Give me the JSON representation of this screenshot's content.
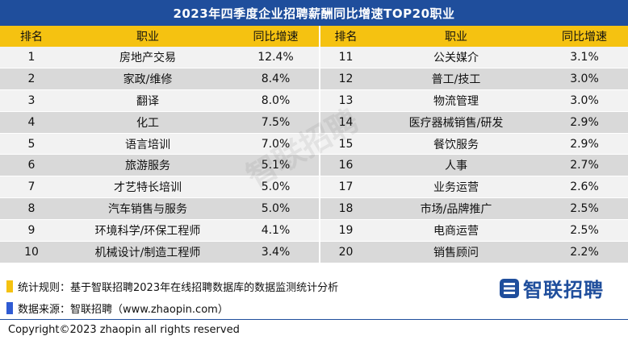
{
  "title": "2023年四季度企业招聘薪酬同比增速TOP20职业",
  "columns": [
    "排名",
    "职业",
    "同比增速",
    "排名",
    "职业",
    "同比增速"
  ],
  "rows": [
    {
      "r1": "1",
      "j1": "房地产交易",
      "v1": "12.4%",
      "r2": "11",
      "j2": "公关媒介",
      "v2": "3.1%"
    },
    {
      "r1": "2",
      "j1": "家政/维修",
      "v1": "8.4%",
      "r2": "12",
      "j2": "普工/技工",
      "v2": "3.0%"
    },
    {
      "r1": "3",
      "j1": "翻译",
      "v1": "8.0%",
      "r2": "13",
      "j2": "物流管理",
      "v2": "3.0%"
    },
    {
      "r1": "4",
      "j1": "化工",
      "v1": "7.5%",
      "r2": "14",
      "j2": "医疗器械销售/研发",
      "v2": "2.9%"
    },
    {
      "r1": "5",
      "j1": "语言培训",
      "v1": "7.0%",
      "r2": "15",
      "j2": "餐饮服务",
      "v2": "2.9%"
    },
    {
      "r1": "6",
      "j1": "旅游服务",
      "v1": "5.1%",
      "r2": "16",
      "j2": "人事",
      "v2": "2.7%"
    },
    {
      "r1": "7",
      "j1": "才艺特长培训",
      "v1": "5.0%",
      "r2": "17",
      "j2": "业务运营",
      "v2": "2.6%"
    },
    {
      "r1": "8",
      "j1": "汽车销售与服务",
      "v1": "5.0%",
      "r2": "18",
      "j2": "市场/品牌推广",
      "v2": "2.5%"
    },
    {
      "r1": "9",
      "j1": "环境科学/环保工程师",
      "v1": "4.1%",
      "r2": "19",
      "j2": "电商运营",
      "v2": "2.5%"
    },
    {
      "r1": "10",
      "j1": "机械设计/制造工程师",
      "v1": "3.4%",
      "r2": "20",
      "j2": "销售顾问",
      "v2": "2.2%"
    }
  ],
  "notes": {
    "rule": "统计规则：基于智联招聘2023年在线招聘数据库的数据监测统计分析",
    "source": "数据来源：智联招聘（www.zhaopin.com）",
    "rule_color": "#f5c211",
    "source_color": "#2f5bd3"
  },
  "logo": {
    "text": "智联招聘",
    "icon": "zhaopin-logo-icon",
    "color": "#1f4e9c"
  },
  "watermark": "智联招聘",
  "copyright": "Copyright©2023 zhaopin all rights reserved"
}
